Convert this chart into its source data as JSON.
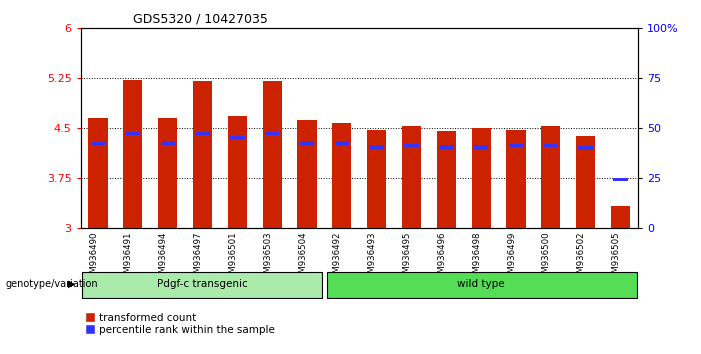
{
  "title": "GDS5320 / 10427035",
  "samples": [
    "GSM936490",
    "GSM936491",
    "GSM936494",
    "GSM936497",
    "GSM936501",
    "GSM936503",
    "GSM936504",
    "GSM936492",
    "GSM936493",
    "GSM936495",
    "GSM936496",
    "GSM936498",
    "GSM936499",
    "GSM936500",
    "GSM936502",
    "GSM936505"
  ],
  "bar_heights": [
    4.65,
    5.22,
    4.65,
    5.21,
    4.68,
    5.21,
    4.62,
    4.58,
    4.47,
    4.53,
    4.46,
    4.5,
    4.47,
    4.53,
    4.38,
    3.33
  ],
  "blue_positions": [
    4.27,
    4.42,
    4.28,
    4.42,
    4.36,
    4.42,
    4.28,
    4.28,
    4.22,
    4.24,
    4.22,
    4.22,
    4.24,
    4.24,
    4.2,
    3.73
  ],
  "bar_color": "#cc2200",
  "blue_color": "#3333ff",
  "ymin": 3.0,
  "ymax": 6.0,
  "yticks_left": [
    3.0,
    3.75,
    4.5,
    5.25,
    6.0
  ],
  "ytick_labels_left": [
    "3",
    "3.75",
    "4.5",
    "5.25",
    "6"
  ],
  "yticks_right": [
    0,
    25,
    50,
    75,
    100
  ],
  "ytick_labels_right": [
    "0",
    "25",
    "50",
    "75",
    "100%"
  ],
  "group1_label": "Pdgf-c transgenic",
  "group2_label": "wild type",
  "group1_count": 7,
  "group2_count": 9,
  "group1_color": "#aaeaaa",
  "group2_color": "#55dd55",
  "genotype_label": "genotype/variation",
  "legend_red": "transformed count",
  "legend_blue": "percentile rank within the sample",
  "bar_width": 0.55,
  "bg_color": "#ffffff",
  "plot_bg": "#ffffff",
  "tick_area_bg": "#cccccc"
}
